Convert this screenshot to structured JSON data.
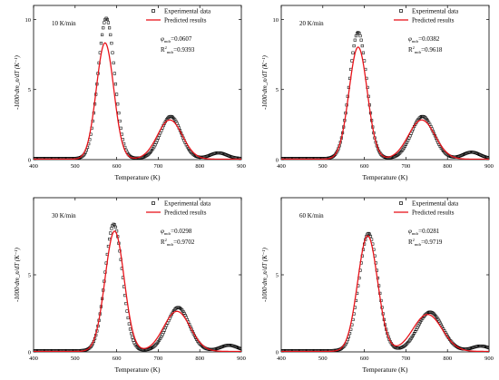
{
  "colors": {
    "experimental": "#000000",
    "predicted": "#e8141b",
    "axis": "#000000"
  },
  "chart_data": [
    {
      "type": "scatter",
      "annotation": "10 K/min",
      "phi_label": "φ",
      "phi_sub": "mdr",
      "phi_value": "=0.0607",
      "r2_label": "R",
      "r2_sup": "2",
      "r2_sub": "mdr",
      "r2_value": "=0.9393",
      "xlabel": "Temperature (K)",
      "ylabel": "-1000·dm_n/dT (K⁻¹)",
      "xlim": [
        400,
        900
      ],
      "ylim": [
        0,
        11
      ],
      "xticks": [
        "400",
        "500",
        "600",
        "700",
        "800",
        "900"
      ],
      "yticks": [
        "0",
        "5",
        "10"
      ],
      "legend": [
        "Experimental data",
        "Predicted results"
      ],
      "legend_position": "top-right",
      "series": [
        {
          "name": "Experimental data",
          "kind": "markers",
          "peak1": [
            575,
            10.0,
            20
          ],
          "peak2": [
            730,
            3.0,
            25
          ],
          "peak3": [
            845,
            0.4,
            20
          ]
        },
        {
          "name": "Predicted results",
          "kind": "line",
          "peak1": [
            572,
            8.3,
            21
          ],
          "peak2": [
            728,
            2.8,
            30
          ]
        }
      ]
    },
    {
      "type": "scatter",
      "annotation": "20 K/min",
      "phi_label": "φ",
      "phi_sub": "mdr",
      "phi_value": "=0.0382",
      "r2_label": "R",
      "r2_sup": "2",
      "r2_sub": "mdr",
      "r2_value": "=0.9618",
      "xlabel": "Temperature (K)",
      "ylabel": "-1000·dm_n/dT (K⁻¹)",
      "xlim": [
        400,
        900
      ],
      "ylim": [
        0,
        11
      ],
      "xticks": [
        "400",
        "500",
        "600",
        "700",
        "800",
        "900"
      ],
      "yticks": [
        "0",
        "5",
        "10"
      ],
      "legend": [
        "Experimental data",
        "Predicted results"
      ],
      "legend_position": "top-right",
      "series": [
        {
          "name": "Experimental data",
          "kind": "markers",
          "peak1": [
            585,
            9.0,
            21
          ],
          "peak2": [
            740,
            3.0,
            27
          ],
          "peak3": [
            858,
            0.45,
            20
          ]
        },
        {
          "name": "Predicted results",
          "kind": "line",
          "peak1": [
            585,
            8.0,
            22
          ],
          "peak2": [
            738,
            2.8,
            32
          ]
        }
      ]
    },
    {
      "type": "scatter",
      "annotation": "30 K/min",
      "phi_label": "φ",
      "phi_sub": "mdr",
      "phi_value": "=0.0298",
      "r2_label": "R",
      "r2_sup": "2",
      "r2_sub": "mdr",
      "r2_value": "=0.9702",
      "xlabel": "Temperature (K)",
      "ylabel": "-1000·dm_n/dT (K⁻¹)",
      "xlim": [
        400,
        900
      ],
      "ylim": [
        0,
        10
      ],
      "xticks": [
        "400",
        "500",
        "600",
        "700",
        "800",
        "900"
      ],
      "yticks": [
        "0",
        "5"
      ],
      "legend": [
        "Experimental data",
        "Predicted results"
      ],
      "legend_position": "top-right",
      "series": [
        {
          "name": "Experimental data",
          "kind": "markers",
          "peak1": [
            593,
            8.2,
            21
          ],
          "peak2": [
            748,
            2.8,
            27
          ],
          "peak3": [
            870,
            0.35,
            20
          ]
        },
        {
          "name": "Predicted results",
          "kind": "line",
          "peak1": [
            595,
            7.8,
            23
          ],
          "peak2": [
            745,
            2.6,
            32
          ]
        }
      ]
    },
    {
      "type": "scatter",
      "annotation": "60 K/min",
      "phi_label": "φ",
      "phi_sub": "mdr",
      "phi_value": "=0.0281",
      "r2_label": "R",
      "r2_sup": "2",
      "r2_sub": "mdr",
      "r2_value": "=0.9719",
      "xlabel": "Temperature (K)",
      "ylabel": "-1000·dm_n/dT (K⁻¹)",
      "xlim": [
        400,
        900
      ],
      "ylim": [
        0,
        10
      ],
      "xticks": [
        "400",
        "500",
        "600",
        "700",
        "800",
        "900"
      ],
      "yticks": [
        "0",
        "5"
      ],
      "legend": [
        "Experimental data",
        "Predicted results"
      ],
      "legend_position": "top-right",
      "series": [
        {
          "name": "Experimental data",
          "kind": "markers",
          "peak1": [
            610,
            7.6,
            23
          ],
          "peak2": [
            758,
            2.5,
            30
          ],
          "peak3": [
            880,
            0.3,
            20
          ]
        },
        {
          "name": "Predicted results",
          "kind": "line",
          "peak1": [
            608,
            7.5,
            24
          ],
          "peak2": [
            752,
            2.4,
            35
          ]
        }
      ]
    }
  ]
}
